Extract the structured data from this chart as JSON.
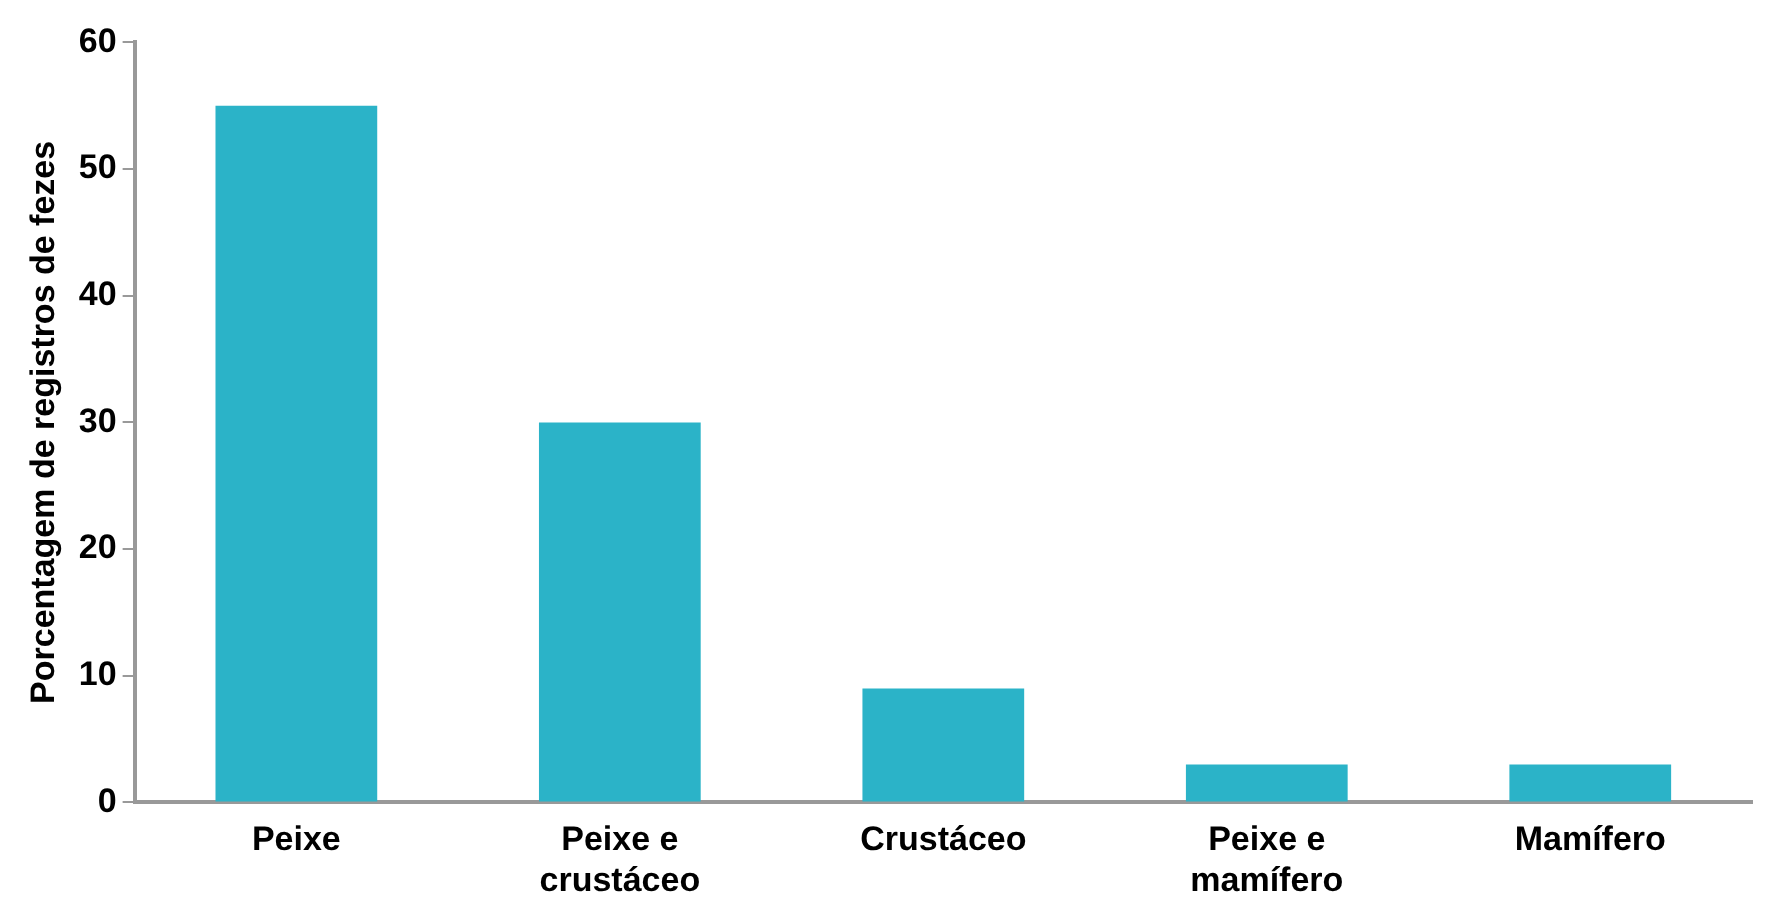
{
  "chart_data": {
    "type": "bar",
    "ylabel": "Porcentagem de registros de fezes",
    "categories": [
      "Peixe",
      "Peixe e crustáceo",
      "Crustáceo",
      "Peixe e mamífero",
      "Mamífero"
    ],
    "values": [
      55,
      30,
      9,
      3,
      3
    ],
    "color": "#2bb3c8",
    "ylim": [
      0,
      60
    ],
    "yticks": [
      0,
      10,
      20,
      30,
      40,
      50,
      60
    ],
    "grid": false
  }
}
